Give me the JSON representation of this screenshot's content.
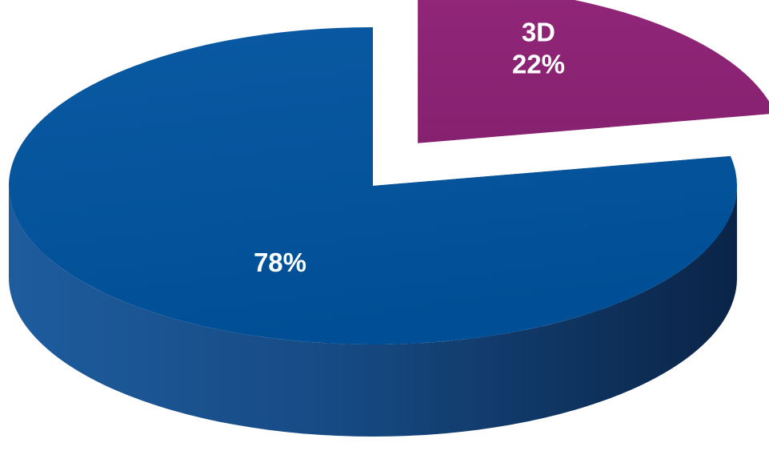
{
  "chart_data": {
    "type": "pie",
    "style": "3d-exploded",
    "slices": [
      {
        "category": "3D",
        "value": 22,
        "value_label": "22%",
        "color": "#8B2372",
        "side_color": "#3D0E31",
        "exploded": true
      },
      {
        "category": "",
        "value": 78,
        "value_label": "78%",
        "color": "#00529B",
        "side_color": "#0D2E55",
        "exploded": false
      }
    ],
    "title": "",
    "legend": "none"
  }
}
